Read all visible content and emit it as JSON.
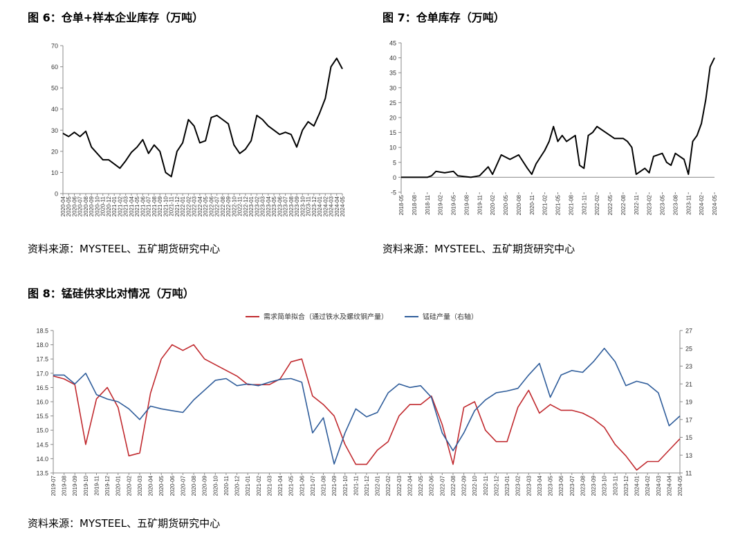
{
  "page": {
    "fig6_title": "图 6：仓单+样本企业库存（万吨）",
    "fig7_title": "图 7：仓单库存（万吨）",
    "fig8_title": "图 8：锰硅供求比对情况（万吨）",
    "source_1": "资料来源：MYSTEEL、五矿期货研究中心",
    "source_2": "资料来源：MYSTEEL、五矿期货研究中心",
    "source_3": "资料来源：MYSTEEL、五矿期货研究中心"
  },
  "chart_data": [
    {
      "id": "fig6",
      "type": "line",
      "title": "图 6：仓单+样本企业库存（万吨）",
      "ylim": [
        0,
        70
      ],
      "yticks": [
        0,
        10,
        20,
        30,
        40,
        50,
        60,
        70
      ],
      "xlim": [
        "2020-04",
        "2024-05"
      ],
      "xticks": [
        "2020-04",
        "2020-05",
        "2020-06",
        "2020-07",
        "2020-08",
        "2020-09",
        "2020-10",
        "2020-11",
        "2020-12",
        "2021-01",
        "2021-02",
        "2021-03",
        "2021-04",
        "2021-05",
        "2021-06",
        "2021-07",
        "2021-08",
        "2021-09",
        "2021-10",
        "2021-11",
        "2021-12",
        "2022-01",
        "2022-02",
        "2022-03",
        "2022-04",
        "2022-05",
        "2022-06",
        "2022-07",
        "2022-08",
        "2022-09",
        "2022-10",
        "2022-11",
        "2022-12",
        "2023-01",
        "2023-02",
        "2023-03",
        "2023-04",
        "2023-05",
        "2023-06",
        "2023-07",
        "2023-08",
        "2023-09",
        "2023-10",
        "2023-11",
        "2023-12",
        "2024-01",
        "2024-02",
        "2024-03",
        "2024-04",
        "2024-05"
      ],
      "grid": false,
      "series": [
        {
          "color": "#000000",
          "x": [
            "2020-04",
            "2020-05",
            "2020-06",
            "2020-07",
            "2020-08",
            "2020-09",
            "2020-10",
            "2020-11",
            "2020-12",
            "2021-01",
            "2021-02",
            "2021-03",
            "2021-04",
            "2021-05",
            "2021-06",
            "2021-07",
            "2021-08",
            "2021-09",
            "2021-10",
            "2021-11",
            "2021-12",
            "2022-01",
            "2022-02",
            "2022-03",
            "2022-04",
            "2022-05",
            "2022-06",
            "2022-07",
            "2022-08",
            "2022-09",
            "2022-10",
            "2022-11",
            "2022-12",
            "2023-01",
            "2023-02",
            "2023-03",
            "2023-04",
            "2023-05",
            "2023-06",
            "2023-07",
            "2023-08",
            "2023-09",
            "2023-10",
            "2023-11",
            "2023-12",
            "2024-01",
            "2024-02",
            "2024-03",
            "2024-04",
            "2024-05"
          ],
          "values": [
            28.5,
            27,
            29,
            27,
            29.5,
            22,
            19,
            16,
            16,
            14,
            12,
            15.5,
            19.5,
            22,
            25.5,
            19,
            23,
            20,
            10,
            8,
            20,
            24,
            35,
            32,
            24,
            25,
            36,
            37,
            35,
            33,
            23,
            19,
            21,
            25,
            37,
            35,
            32,
            30,
            28,
            29,
            28,
            22,
            30,
            34,
            32,
            38,
            45,
            60,
            64,
            59
          ]
        }
      ]
    },
    {
      "id": "fig7",
      "type": "line",
      "title": "图 7：仓单库存（万吨）",
      "ylim": [
        -5,
        45
      ],
      "yticks": [
        -5,
        0,
        5,
        10,
        15,
        20,
        25,
        30,
        35,
        40,
        45
      ],
      "xlim": [
        "2018-05",
        "2024-05"
      ],
      "xticks": [
        "2018-05",
        "2018-08",
        "2018-11",
        "2019-02",
        "2019-05",
        "2019-08",
        "2019-11",
        "2020-02",
        "2020-05",
        "2020-08",
        "2020-11",
        "2021-02",
        "2021-05",
        "2021-08",
        "2021-11",
        "2022-02",
        "2022-05",
        "2022-08",
        "2022-11",
        "2023-02",
        "2023-05",
        "2023-08",
        "2023-11",
        "2024-02",
        "2024-05"
      ],
      "grid": false,
      "series": [
        {
          "color": "#000000",
          "x": [
            "2018-05",
            "2018-08",
            "2018-11",
            "2018-12",
            "2019-01",
            "2019-03",
            "2019-05",
            "2019-06",
            "2019-09",
            "2019-11",
            "2020-01",
            "2020-02",
            "2020-04",
            "2020-06",
            "2020-08",
            "2020-10",
            "2020-11",
            "2020-12",
            "2021-02",
            "2021-03",
            "2021-04",
            "2021-05",
            "2021-06",
            "2021-07",
            "2021-09",
            "2021-10",
            "2021-11",
            "2021-12",
            "2022-01",
            "2022-02",
            "2022-04",
            "2022-06",
            "2022-08",
            "2022-09",
            "2022-10",
            "2022-11",
            "2023-01",
            "2023-02",
            "2023-03",
            "2023-05",
            "2023-06",
            "2023-07",
            "2023-08",
            "2023-09",
            "2023-10",
            "2023-11",
            "2023-12",
            "2024-01",
            "2024-02",
            "2024-03",
            "2024-04",
            "2024-05"
          ],
          "values": [
            0,
            0,
            0,
            0.5,
            2,
            1.5,
            2,
            0.5,
            0,
            0.5,
            3.5,
            1,
            7.5,
            6,
            7.5,
            3,
            1,
            4.5,
            9,
            12,
            17,
            12,
            14,
            12,
            14,
            4,
            3,
            14,
            15,
            17,
            15,
            13,
            13,
            12,
            10,
            1,
            3,
            1.5,
            7,
            8,
            5,
            4,
            8,
            7,
            6,
            1,
            12,
            14,
            18,
            26,
            37,
            40
          ]
        }
      ]
    },
    {
      "id": "fig8",
      "type": "line",
      "title": "图 8：锰硅供求比对情况（万吨）",
      "legend": "top",
      "ylim": [
        13.5,
        18.5
      ],
      "yticks": [
        13.5,
        14.0,
        14.5,
        15.0,
        15.5,
        16.0,
        16.5,
        17.0,
        17.5,
        18.0,
        18.5
      ],
      "y2lim": [
        11,
        27
      ],
      "y2ticks": [
        11,
        13,
        15,
        17,
        19,
        21,
        23,
        25,
        27
      ],
      "xlim": [
        "2019-07",
        "2024-05"
      ],
      "xticks": [
        "2019-07",
        "2019-08",
        "2019-09",
        "2019-10",
        "2019-11",
        "2019-12",
        "2020-01",
        "2020-02",
        "2020-03",
        "2020-04",
        "2020-05",
        "2020-06",
        "2020-07",
        "2020-08",
        "2020-09",
        "2020-10",
        "2020-11",
        "2020-12",
        "2021-01",
        "2021-02",
        "2021-03",
        "2021-04",
        "2021-05",
        "2021-06",
        "2021-07",
        "2021-08",
        "2021-09",
        "2021-10",
        "2021-11",
        "2021-12",
        "2022-01",
        "2022-02",
        "2022-03",
        "2022-04",
        "2022-05",
        "2022-06",
        "2022-07",
        "2022-08",
        "2022-09",
        "2022-10",
        "2022-11",
        "2022-12",
        "2023-01",
        "2023-02",
        "2023-03",
        "2023-04",
        "2023-05",
        "2023-06",
        "2023-07",
        "2023-08",
        "2023-09",
        "2023-10",
        "2023-11",
        "2023-12",
        "2024-01",
        "2024-02",
        "2024-03",
        "2024-04",
        "2024-05"
      ],
      "grid": false,
      "series": [
        {
          "name": "需求简单拟合（通过铁水及螺纹钢产量）",
          "axis": "left",
          "color": "#c0282d",
          "x": [
            "2019-07",
            "2019-08",
            "2019-09",
            "2019-10",
            "2019-11",
            "2019-12",
            "2020-01",
            "2020-02",
            "2020-03",
            "2020-04",
            "2020-05",
            "2020-06",
            "2020-07",
            "2020-08",
            "2020-09",
            "2020-10",
            "2020-11",
            "2020-12",
            "2021-01",
            "2021-02",
            "2021-03",
            "2021-04",
            "2021-05",
            "2021-06",
            "2021-07",
            "2021-08",
            "2021-09",
            "2021-10",
            "2021-11",
            "2021-12",
            "2022-01",
            "2022-02",
            "2022-03",
            "2022-04",
            "2022-05",
            "2022-06",
            "2022-07",
            "2022-08",
            "2022-09",
            "2022-10",
            "2022-11",
            "2022-12",
            "2023-01",
            "2023-02",
            "2023-03",
            "2023-04",
            "2023-05",
            "2023-06",
            "2023-07",
            "2023-08",
            "2023-09",
            "2023-10",
            "2023-11",
            "2023-12",
            "2024-01",
            "2024-02",
            "2024-03",
            "2024-04",
            "2024-05"
          ],
          "values": [
            16.9,
            16.8,
            16.6,
            14.5,
            16.1,
            16.5,
            15.8,
            14.1,
            14.2,
            16.3,
            17.5,
            18.0,
            17.8,
            18.0,
            17.5,
            17.3,
            17.1,
            16.9,
            16.6,
            16.6,
            16.6,
            16.8,
            17.4,
            17.5,
            16.2,
            15.9,
            15.5,
            14.5,
            13.8,
            13.8,
            14.3,
            14.6,
            15.5,
            15.9,
            15.9,
            16.2,
            15.2,
            13.8,
            15.8,
            16.0,
            15.0,
            14.6,
            14.6,
            15.8,
            16.4,
            15.6,
            15.9,
            15.7,
            15.7,
            15.6,
            15.4,
            15.1,
            14.5,
            14.1,
            13.6,
            13.9,
            13.9,
            14.3,
            14.7
          ]
        },
        {
          "name": "锰硅产量（右轴）",
          "axis": "right",
          "color": "#2e5c9a",
          "x": [
            "2019-07",
            "2019-08",
            "2019-09",
            "2019-10",
            "2019-11",
            "2019-12",
            "2020-01",
            "2020-02",
            "2020-03",
            "2020-04",
            "2020-05",
            "2020-06",
            "2020-07",
            "2020-08",
            "2020-09",
            "2020-10",
            "2020-11",
            "2020-12",
            "2021-01",
            "2021-02",
            "2021-03",
            "2021-04",
            "2021-05",
            "2021-06",
            "2021-07",
            "2021-08",
            "2021-09",
            "2021-10",
            "2021-11",
            "2021-12",
            "2022-01",
            "2022-02",
            "2022-03",
            "2022-04",
            "2022-05",
            "2022-06",
            "2022-07",
            "2022-08",
            "2022-09",
            "2022-10",
            "2022-11",
            "2022-12",
            "2023-01",
            "2023-02",
            "2023-03",
            "2023-04",
            "2023-05",
            "2023-06",
            "2023-07",
            "2023-08",
            "2023-09",
            "2023-10",
            "2023-11",
            "2023-12",
            "2024-01",
            "2024-02",
            "2024-03",
            "2024-04",
            "2024-05"
          ],
          "values": [
            22.0,
            22.0,
            21.0,
            22.2,
            19.8,
            19.3,
            19.0,
            18.2,
            17.0,
            18.5,
            18.2,
            18.0,
            17.8,
            19.2,
            20.3,
            21.4,
            21.6,
            20.8,
            21.0,
            20.8,
            21.2,
            21.5,
            21.6,
            21.2,
            15.5,
            17.2,
            12.0,
            15.5,
            18.2,
            17.3,
            17.8,
            20.0,
            21.0,
            20.6,
            20.8,
            19.5,
            15.5,
            13.5,
            15.5,
            18.0,
            19.2,
            20.0,
            20.2,
            20.5,
            22.0,
            23.3,
            19.5,
            22.0,
            22.5,
            22.3,
            23.5,
            25.0,
            23.5,
            20.8,
            21.3,
            21.0,
            20.0,
            16.3,
            17.4
          ]
        }
      ]
    }
  ]
}
